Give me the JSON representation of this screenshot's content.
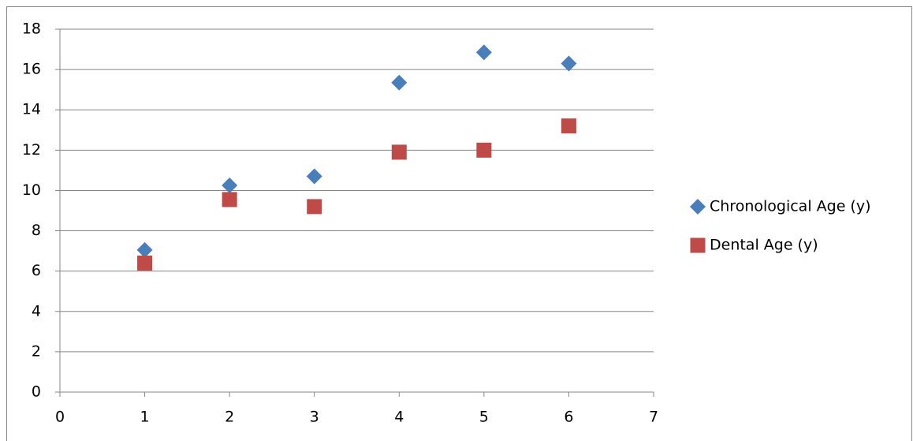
{
  "chart_data": {
    "type": "scatter",
    "x": [
      1,
      2,
      3,
      4,
      5,
      6
    ],
    "series": [
      {
        "name": "Chronological Age (y)",
        "color": "#4a7ebb",
        "marker": "diamond",
        "values": [
          7.05,
          10.25,
          10.7,
          15.35,
          16.85,
          16.3
        ]
      },
      {
        "name": "Dental Age (y)",
        "color": "#be4b48",
        "marker": "square",
        "values": [
          6.4,
          9.55,
          9.2,
          11.9,
          12.0,
          13.2
        ]
      }
    ],
    "xlim": [
      0,
      7
    ],
    "xticks": [
      0,
      1,
      2,
      3,
      4,
      5,
      6,
      7
    ],
    "ylim": [
      0,
      18
    ],
    "yticks": [
      0,
      2,
      4,
      6,
      8,
      10,
      12,
      14,
      16,
      18
    ],
    "grid": true,
    "legend": "right"
  }
}
